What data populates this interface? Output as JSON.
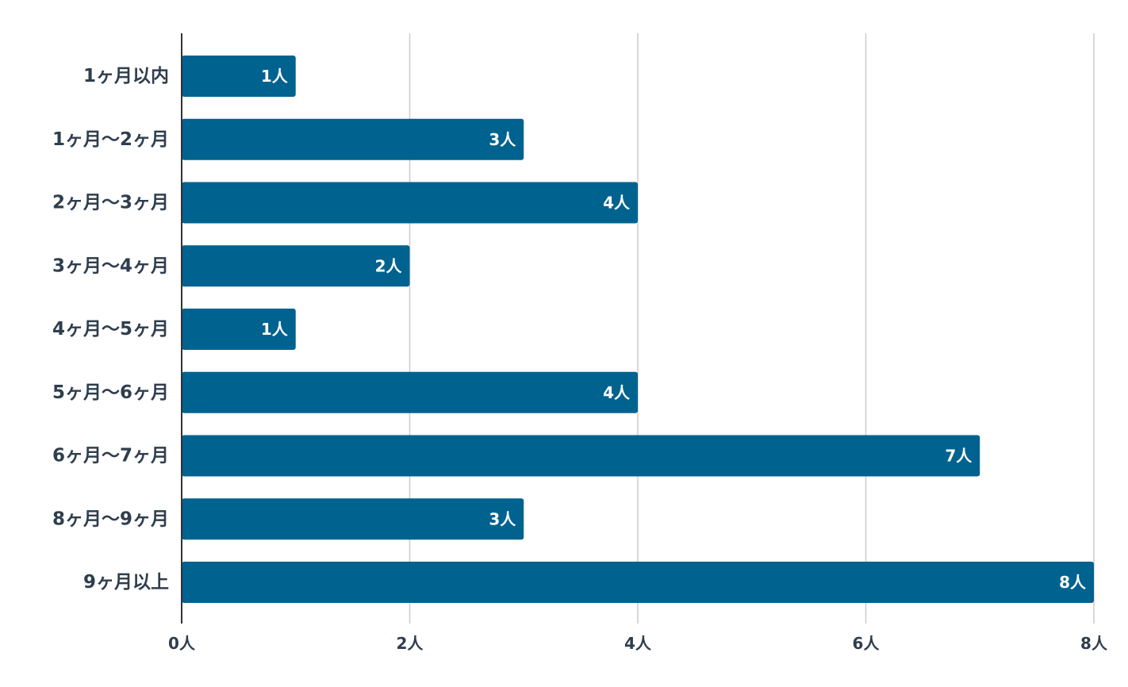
{
  "chart_data": {
    "type": "bar",
    "orientation": "horizontal",
    "categories": [
      "1ヶ月以内",
      "1ヶ月〜2ヶ月",
      "2ヶ月〜3ヶ月",
      "3ヶ月〜4ヶ月",
      "4ヶ月〜5ヶ月",
      "5ヶ月〜6ヶ月",
      "6ヶ月〜7ヶ月",
      "8ヶ月〜9ヶ月",
      "9ヶ月以上"
    ],
    "values": [
      1,
      3,
      4,
      2,
      1,
      4,
      7,
      3,
      8
    ],
    "data_labels": [
      "1人",
      "3人",
      "4人",
      "2人",
      "1人",
      "4人",
      "7人",
      "3人",
      "8人"
    ],
    "x_ticks": [
      0,
      2,
      4,
      6,
      8
    ],
    "x_tick_labels": [
      "0人",
      "2人",
      "4人",
      "6人",
      "8人"
    ],
    "xlim": [
      0,
      8
    ],
    "grid": "vertical",
    "bar_color": "#00628f",
    "grid_color": "#cccccc",
    "axis_color": "#333333",
    "label_color": "#2f3e4e",
    "data_label_color": "#ffffff"
  }
}
